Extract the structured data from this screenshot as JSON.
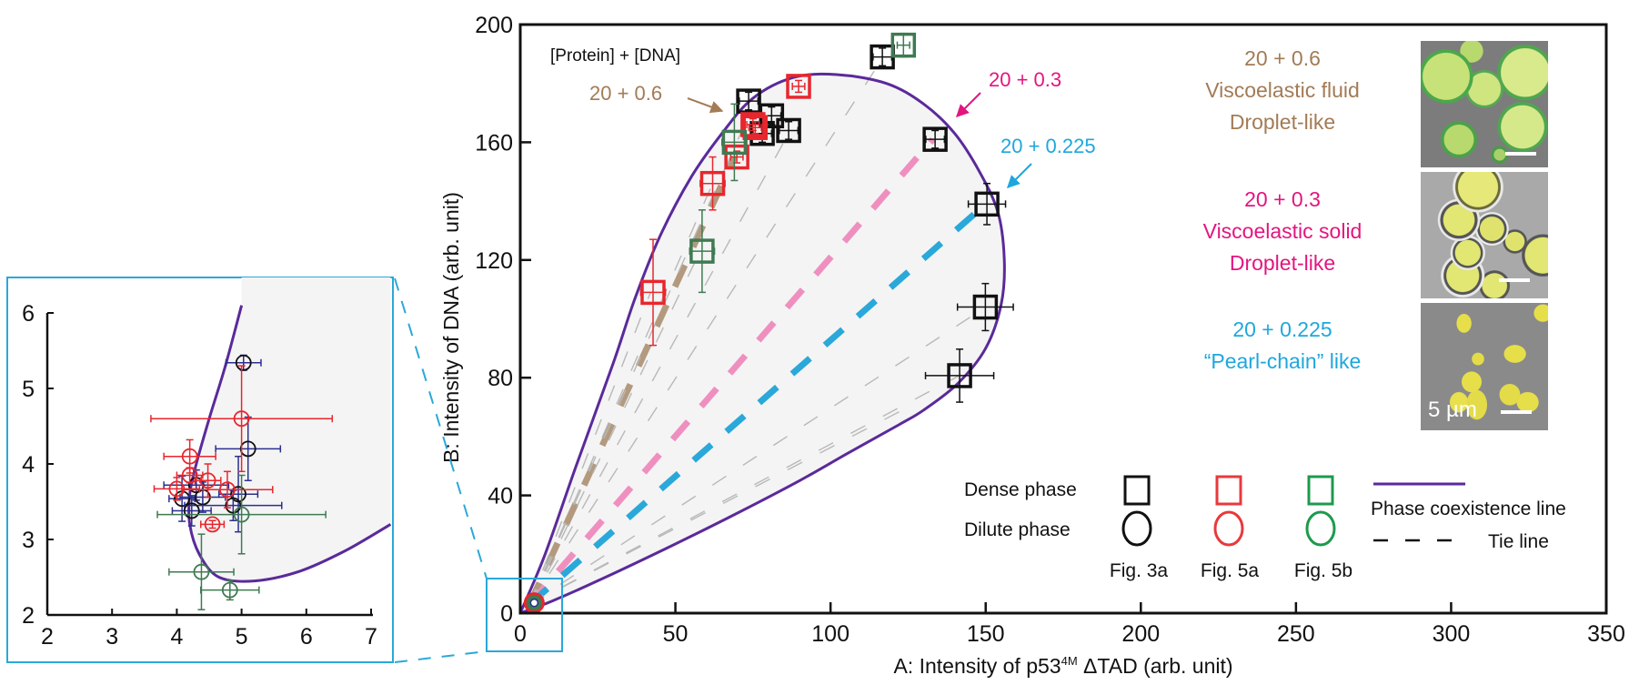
{
  "chart_data": [
    {
      "id": "main",
      "type": "scatter",
      "title": "",
      "annotation_title": "[Protein] + [DNA]",
      "xlabel_parts": [
        "A: Intensity of p53",
        "4M",
        " ΔTAD (arb. unit)"
      ],
      "xlabel": "A: Intensity of p53⁴ᴹ ΔTAD (arb. unit)",
      "ylabel": "B: Intensity of DNA (arb. unit)",
      "xlim": [
        0,
        350
      ],
      "ylim": [
        0,
        200
      ],
      "xticks": [
        0,
        50,
        100,
        150,
        200,
        250,
        300,
        350
      ],
      "yticks": [
        0,
        40,
        80,
        120,
        160,
        200
      ],
      "grid": false,
      "colors": {
        "fig3a": "#111111",
        "fig5a": "#e8262d",
        "fig5b": "#3f7a52",
        "errorbar_blue": "#2b2f8f",
        "coexistence": "#5a2a9a",
        "tie_06": "#b39a7e",
        "tie_03": "#ef8fbf",
        "tie_0225": "#2aa8d9",
        "tie_gray": "#b8b8b8",
        "region_fill": "#f4f4f4"
      },
      "phase_coexistence_line": {
        "name": "Phase coexistence line",
        "points": [
          [
            0,
            0
          ],
          [
            8,
            20
          ],
          [
            18,
            50
          ],
          [
            30,
            85
          ],
          [
            37,
            107
          ],
          [
            45,
            128
          ],
          [
            55,
            148
          ],
          [
            65,
            163
          ],
          [
            75,
            175
          ],
          [
            88,
            182
          ],
          [
            102,
            183
          ],
          [
            118,
            180
          ],
          [
            130,
            173
          ],
          [
            140,
            163
          ],
          [
            148,
            150
          ],
          [
            154,
            136
          ],
          [
            156,
            120
          ],
          [
            155,
            105
          ],
          [
            150,
            90
          ],
          [
            141,
            78
          ],
          [
            130,
            69
          ],
          [
            122,
            64
          ],
          [
            105,
            54
          ],
          [
            90,
            45
          ],
          [
            70,
            34
          ],
          [
            49,
            23
          ],
          [
            25,
            11
          ],
          [
            10,
            4
          ],
          [
            0,
            0
          ]
        ]
      },
      "tie_lines": [
        {
          "label": "20 + 0.6",
          "color_key": "tie_06",
          "from": [
            3,
            3
          ],
          "to": [
            69,
            155
          ],
          "bold": true
        },
        {
          "label": "20 + 0.3",
          "color_key": "tie_03",
          "from": [
            3,
            3
          ],
          "to": [
            133,
            161
          ],
          "bold": true
        },
        {
          "label": "20 + 0.225",
          "color_key": "tie_0225",
          "from": [
            3,
            3
          ],
          "to": [
            150,
            139
          ],
          "bold": true
        },
        {
          "color_key": "tie_gray",
          "from": [
            3,
            3
          ],
          "to": [
            42,
            109
          ]
        },
        {
          "color_key": "tie_gray",
          "from": [
            3,
            3
          ],
          "to": [
            58,
            123
          ]
        },
        {
          "color_key": "tie_gray",
          "from": [
            3,
            3
          ],
          "to": [
            62,
            146
          ]
        },
        {
          "color_key": "tie_gray",
          "from": [
            3,
            3
          ],
          "to": [
            74,
            170
          ]
        },
        {
          "color_key": "tie_gray",
          "from": [
            3,
            3
          ],
          "to": [
            87,
            164
          ]
        },
        {
          "color_key": "tie_gray",
          "from": [
            3,
            3
          ],
          "to": [
            117,
            189
          ]
        },
        {
          "color_key": "tie_gray",
          "from": [
            3,
            3
          ],
          "to": [
            150,
            104
          ]
        },
        {
          "color_key": "tie_gray",
          "from": [
            3,
            3
          ],
          "to": [
            142,
            81
          ]
        },
        {
          "color_key": "tie_gray",
          "from": [
            3,
            3
          ],
          "to": [
            125,
            70
          ]
        }
      ],
      "series": [
        {
          "name": "Dense phase — Fig. 3a",
          "marker": "square",
          "color_key": "fig3a",
          "points": [
            {
              "x": 116.7,
              "y": 189,
              "xerr": 3,
              "yerr": 3
            },
            {
              "x": 73.6,
              "y": 174,
              "xerr": 3,
              "yerr": 3
            },
            {
              "x": 81,
              "y": 169,
              "xerr": 3,
              "yerr": 3
            },
            {
              "x": 86.5,
              "y": 164,
              "xerr": 3,
              "yerr": 3
            },
            {
              "x": 78,
              "y": 163,
              "xerr": 3,
              "yerr": 3
            },
            {
              "x": 133.7,
              "y": 161,
              "xerr": 3,
              "yerr": 3
            },
            {
              "x": 150.4,
              "y": 139,
              "xerr": 6,
              "yerr": 7
            },
            {
              "x": 149.9,
              "y": 104,
              "xerr": 9,
              "yerr": 8
            },
            {
              "x": 141.6,
              "y": 80.7,
              "xerr": 11,
              "yerr": 9
            }
          ]
        },
        {
          "name": "Dense phase — Fig. 5a",
          "marker": "square",
          "color_key": "fig5a",
          "points": [
            {
              "x": 89.7,
              "y": 179,
              "xerr": 2,
              "yerr": 2
            },
            {
              "x": 75.7,
              "y": 165,
              "xerr": 2,
              "yerr": 2
            },
            {
              "x": 75,
              "y": 166,
              "xerr": 2,
              "yerr": 2
            },
            {
              "x": 69.8,
              "y": 155,
              "xerr": 2,
              "yerr": 2
            },
            {
              "x": 62,
              "y": 146,
              "xerr": 4,
              "yerr": 9
            },
            {
              "x": 42.8,
              "y": 109,
              "xerr": 4,
              "yerr": 18
            }
          ]
        },
        {
          "name": "Dense phase — Fig. 5b",
          "marker": "square",
          "color_key": "fig5b",
          "points": [
            {
              "x": 123.5,
              "y": 193,
              "xerr": 2,
              "yerr": 4
            },
            {
              "x": 69,
              "y": 160,
              "xerr": 4,
              "yerr": 13
            },
            {
              "x": 58.6,
              "y": 123,
              "xerr": 4,
              "yerr": 14
            }
          ]
        },
        {
          "name": "Dilute phase (all)",
          "marker": "circle",
          "color_key": "fig5b",
          "points": [
            {
              "x": 4.5,
              "y": 3.5,
              "xerr": 0,
              "yerr": 0
            }
          ]
        }
      ]
    },
    {
      "id": "inset",
      "type": "scatter",
      "title": "",
      "xlabel": "",
      "ylabel": "",
      "xlim": [
        2,
        7
      ],
      "ylim": [
        2,
        6
      ],
      "xticks": [
        2,
        3,
        4,
        5,
        6,
        7
      ],
      "yticks": [
        2,
        3,
        4,
        5,
        6
      ],
      "grid": false,
      "phase_coexistence_line": {
        "points": [
          [
            5.0,
            6.1
          ],
          [
            4.75,
            5.3
          ],
          [
            4.5,
            4.6
          ],
          [
            4.3,
            4.0
          ],
          [
            4.2,
            3.6
          ],
          [
            4.2,
            3.2
          ],
          [
            4.35,
            2.8
          ],
          [
            4.65,
            2.5
          ],
          [
            5.2,
            2.45
          ],
          [
            5.9,
            2.58
          ],
          [
            6.6,
            2.85
          ],
          [
            7.3,
            3.2
          ]
        ]
      },
      "series": [
        {
          "name": "Dilute phase — Fig. 3a",
          "marker": "circle",
          "color_key": "fig3a",
          "errorbar_color_key": "errorbar_blue",
          "points": [
            {
              "x": 5.03,
              "y": 5.34,
              "xerr": 0.27,
              "yerr": 0.1
            },
            {
              "x": 5.1,
              "y": 4.2,
              "xerr": 0.5,
              "yerr": 0.42
            },
            {
              "x": 4.3,
              "y": 3.72,
              "xerr": 0.5,
              "yerr": 0.2
            },
            {
              "x": 4.95,
              "y": 3.6,
              "xerr": 0.3,
              "yerr": 0.5
            },
            {
              "x": 4.08,
              "y": 3.54,
              "xerr": 0.2,
              "yerr": 0.3
            },
            {
              "x": 4.4,
              "y": 3.56,
              "xerr": 0.35,
              "yerr": 0.2
            },
            {
              "x": 4.87,
              "y": 3.45,
              "xerr": 0.75,
              "yerr": 0.2
            },
            {
              "x": 4.23,
              "y": 3.38,
              "xerr": 0.3,
              "yerr": 0.2
            }
          ]
        },
        {
          "name": "Dilute phase — Fig. 5a",
          "marker": "circle",
          "color_key": "fig5a",
          "points": [
            {
              "x": 5.0,
              "y": 4.6,
              "xerr": 1.4,
              "yerr": 0.7
            },
            {
              "x": 4.2,
              "y": 4.1,
              "xerr": 0.4,
              "yerr": 0.22
            },
            {
              "x": 4.2,
              "y": 3.85,
              "xerr": 0.2,
              "yerr": 0.1
            },
            {
              "x": 4.48,
              "y": 3.78,
              "xerr": 0.2,
              "yerr": 0.22
            },
            {
              "x": 4.0,
              "y": 3.67,
              "xerr": 0.35,
              "yerr": 0.15
            },
            {
              "x": 4.78,
              "y": 3.66,
              "xerr": 0.7,
              "yerr": 0.24
            },
            {
              "x": 4.55,
              "y": 3.2,
              "xerr": 0.18,
              "yerr": 0.05
            }
          ]
        },
        {
          "name": "Dilute phase — Fig. 5b",
          "marker": "circle",
          "color_key": "fig5b",
          "points": [
            {
              "x": 5.0,
              "y": 3.33,
              "xerr": 1.3,
              "yerr": 0.52
            },
            {
              "x": 4.38,
              "y": 2.57,
              "xerr": 0.5,
              "yerr": 0.5
            },
            {
              "x": 4.82,
              "y": 2.33,
              "xerr": 0.45,
              "yerr": 0.13
            }
          ]
        }
      ]
    }
  ],
  "annotations": {
    "label_06": "20 + 0.6",
    "label_03": "20 + 0.3",
    "label_0225": "20 + 0.225",
    "color_06": "#a37b55",
    "color_03": "#e3157f",
    "color_0225": "#1ea7dd"
  },
  "side_panels": [
    {
      "title": "20 + 0.6",
      "line1": "Viscoelastic fluid",
      "line2": "Droplet-like",
      "color": "#a37b55"
    },
    {
      "title": "20 + 0.3",
      "line1": "Viscoelastic solid",
      "line2": "Droplet-like",
      "color": "#e3157f"
    },
    {
      "title": "20 + 0.225",
      "line1": "“Pearl-chain” like",
      "line2": "",
      "color": "#1ea7dd"
    }
  ],
  "scale_bar_label": "5 µm",
  "legend": {
    "dense_label": "Dense phase",
    "dilute_label": "Dilute phase",
    "groups": [
      {
        "label": "Fig. 3a",
        "color": "#111111",
        "marker_color": "#111111"
      },
      {
        "label": "Fig. 5a",
        "color": "#e8262d",
        "marker_color": "#e8393c"
      },
      {
        "label": "Fig. 5b",
        "color": "#2f6e3c",
        "marker_color": "#1e9a4c"
      }
    ],
    "coexistence_label": "Phase coexistence line",
    "tie_label": "Tie line"
  },
  "zoom_box_color": "#2aa8d9"
}
